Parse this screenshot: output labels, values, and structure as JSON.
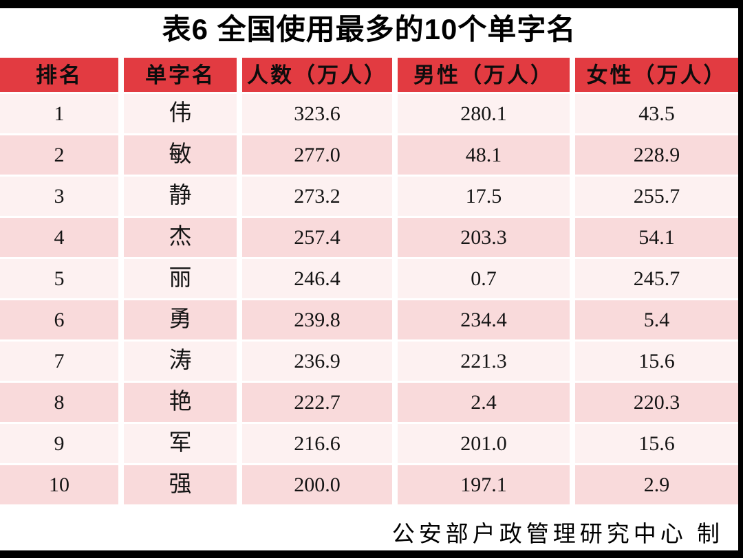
{
  "title": "表6 全国使用最多的10个单字名",
  "table": {
    "headers": [
      "排名",
      "单字名",
      "人数（万人）",
      "男性（万人）",
      "女性（万人）"
    ],
    "rows": [
      {
        "rank": "1",
        "name": "伟",
        "total": "323.6",
        "male": "280.1",
        "female": "43.5"
      },
      {
        "rank": "2",
        "name": "敏",
        "total": "277.0",
        "male": "48.1",
        "female": "228.9"
      },
      {
        "rank": "3",
        "name": "静",
        "total": "273.2",
        "male": "17.5",
        "female": "255.7"
      },
      {
        "rank": "4",
        "name": "杰",
        "total": "257.4",
        "male": "203.3",
        "female": "54.1"
      },
      {
        "rank": "5",
        "name": "丽",
        "total": "246.4",
        "male": "0.7",
        "female": "245.7"
      },
      {
        "rank": "6",
        "name": "勇",
        "total": "239.8",
        "male": "234.4",
        "female": "5.4"
      },
      {
        "rank": "7",
        "name": "涛",
        "total": "236.9",
        "male": "221.3",
        "female": "15.6"
      },
      {
        "rank": "8",
        "name": "艳",
        "total": "222.7",
        "male": "2.4",
        "female": "220.3"
      },
      {
        "rank": "9",
        "name": "军",
        "total": "216.6",
        "male": "201.0",
        "female": "15.6"
      },
      {
        "rank": "10",
        "name": "强",
        "total": "200.0",
        "male": "197.1",
        "female": "2.9"
      }
    ]
  },
  "footer": "公安部户政管理研究中心 制",
  "colors": {
    "header_red": "#E23B41",
    "row_light": "#FDF1F1",
    "row_dark": "#F9DADB",
    "frame_black": "#000000"
  },
  "chart_data": {
    "type": "table",
    "title": "表6 全国使用最多的10个单字名",
    "columns": [
      "排名",
      "单字名",
      "人数（万人）",
      "男性（万人）",
      "女性（万人）"
    ],
    "rows": [
      [
        1,
        "伟",
        323.6,
        280.1,
        43.5
      ],
      [
        2,
        "敏",
        277.0,
        48.1,
        228.9
      ],
      [
        3,
        "静",
        273.2,
        17.5,
        255.7
      ],
      [
        4,
        "杰",
        257.4,
        203.3,
        54.1
      ],
      [
        5,
        "丽",
        246.4,
        0.7,
        245.7
      ],
      [
        6,
        "勇",
        239.8,
        234.4,
        5.4
      ],
      [
        7,
        "涛",
        236.9,
        221.3,
        15.6
      ],
      [
        8,
        "艳",
        222.7,
        2.4,
        220.3
      ],
      [
        9,
        "军",
        216.6,
        201.0,
        15.6
      ],
      [
        10,
        "强",
        200.0,
        197.1,
        2.9
      ]
    ],
    "source_note": "公安部户政管理研究中心 制",
    "layout": "header row red, body rows alternate light/dark pink, white gutters between cells"
  }
}
